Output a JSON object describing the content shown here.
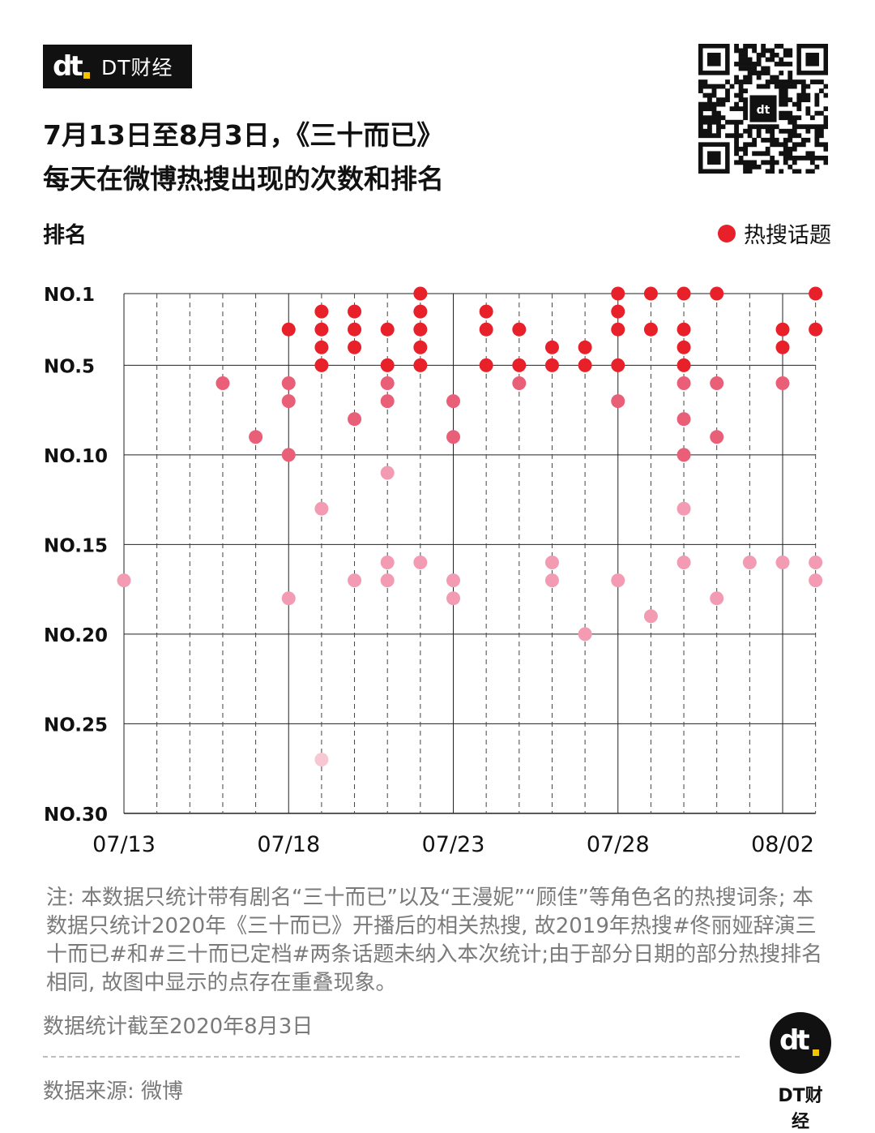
{
  "brand": {
    "name": "DT财经",
    "mark": "dt"
  },
  "title": {
    "line1": "7月13日至8月3日，《三十而已》",
    "line2": "每天在微博热搜出现的次数和排名"
  },
  "qr_icon": "qr-code",
  "colors": {
    "top5": "#e8202a",
    "rank6_10": "#ea5f78",
    "rank11_20": "#f39bb2",
    "rank21_30": "#f8c7d4",
    "brand_yellow": "#f5c400"
  },
  "chart_data": {
    "type": "scatter",
    "title": "7月13日至8月3日，《三十而已》每天在微博热搜出现的次数和排名",
    "ylabel": "排名",
    "y_inverted": true,
    "ylim": [
      1,
      30
    ],
    "y_ticks": [
      {
        "value": 1,
        "label": "NO.1"
      },
      {
        "value": 5,
        "label": "NO.5"
      },
      {
        "value": 10,
        "label": "NO.10"
      },
      {
        "value": 15,
        "label": "NO.15"
      },
      {
        "value": 20,
        "label": "NO.20"
      },
      {
        "value": 25,
        "label": "NO.25"
      },
      {
        "value": 30,
        "label": "NO.30"
      }
    ],
    "x_dates": [
      "07/13",
      "07/14",
      "07/15",
      "07/16",
      "07/17",
      "07/18",
      "07/19",
      "07/20",
      "07/21",
      "07/22",
      "07/23",
      "07/24",
      "07/25",
      "07/26",
      "07/27",
      "07/28",
      "07/29",
      "07/30",
      "07/31",
      "08/01",
      "08/02",
      "08/03"
    ],
    "x_tick_labels": [
      "07/13",
      "07/18",
      "07/23",
      "07/28",
      "08/02"
    ],
    "legend": "热搜话题",
    "grid": true,
    "points": [
      {
        "date": "07/13",
        "rank": 17
      },
      {
        "date": "07/16",
        "rank": 6
      },
      {
        "date": "07/17",
        "rank": 9
      },
      {
        "date": "07/18",
        "rank": 3
      },
      {
        "date": "07/18",
        "rank": 6
      },
      {
        "date": "07/18",
        "rank": 7
      },
      {
        "date": "07/18",
        "rank": 10
      },
      {
        "date": "07/18",
        "rank": 18
      },
      {
        "date": "07/19",
        "rank": 2
      },
      {
        "date": "07/19",
        "rank": 3
      },
      {
        "date": "07/19",
        "rank": 4
      },
      {
        "date": "07/19",
        "rank": 5
      },
      {
        "date": "07/19",
        "rank": 13
      },
      {
        "date": "07/19",
        "rank": 27
      },
      {
        "date": "07/20",
        "rank": 2
      },
      {
        "date": "07/20",
        "rank": 3
      },
      {
        "date": "07/20",
        "rank": 4
      },
      {
        "date": "07/20",
        "rank": 8
      },
      {
        "date": "07/20",
        "rank": 17
      },
      {
        "date": "07/21",
        "rank": 3
      },
      {
        "date": "07/21",
        "rank": 5
      },
      {
        "date": "07/21",
        "rank": 6
      },
      {
        "date": "07/21",
        "rank": 7
      },
      {
        "date": "07/21",
        "rank": 11
      },
      {
        "date": "07/21",
        "rank": 16
      },
      {
        "date": "07/21",
        "rank": 17
      },
      {
        "date": "07/22",
        "rank": 1
      },
      {
        "date": "07/22",
        "rank": 2
      },
      {
        "date": "07/22",
        "rank": 3
      },
      {
        "date": "07/22",
        "rank": 4
      },
      {
        "date": "07/22",
        "rank": 5
      },
      {
        "date": "07/22",
        "rank": 16
      },
      {
        "date": "07/23",
        "rank": 7
      },
      {
        "date": "07/23",
        "rank": 9
      },
      {
        "date": "07/23",
        "rank": 17
      },
      {
        "date": "07/23",
        "rank": 18
      },
      {
        "date": "07/24",
        "rank": 2
      },
      {
        "date": "07/24",
        "rank": 3
      },
      {
        "date": "07/24",
        "rank": 5
      },
      {
        "date": "07/25",
        "rank": 3
      },
      {
        "date": "07/25",
        "rank": 5
      },
      {
        "date": "07/25",
        "rank": 6
      },
      {
        "date": "07/26",
        "rank": 4
      },
      {
        "date": "07/26",
        "rank": 5
      },
      {
        "date": "07/26",
        "rank": 16
      },
      {
        "date": "07/26",
        "rank": 17
      },
      {
        "date": "07/27",
        "rank": 4
      },
      {
        "date": "07/27",
        "rank": 5
      },
      {
        "date": "07/27",
        "rank": 20
      },
      {
        "date": "07/28",
        "rank": 1
      },
      {
        "date": "07/28",
        "rank": 2
      },
      {
        "date": "07/28",
        "rank": 3
      },
      {
        "date": "07/28",
        "rank": 5
      },
      {
        "date": "07/28",
        "rank": 7
      },
      {
        "date": "07/28",
        "rank": 17
      },
      {
        "date": "07/29",
        "rank": 1
      },
      {
        "date": "07/29",
        "rank": 3
      },
      {
        "date": "07/29",
        "rank": 19
      },
      {
        "date": "07/30",
        "rank": 1
      },
      {
        "date": "07/30",
        "rank": 3
      },
      {
        "date": "07/30",
        "rank": 4
      },
      {
        "date": "07/30",
        "rank": 5
      },
      {
        "date": "07/30",
        "rank": 6
      },
      {
        "date": "07/30",
        "rank": 8
      },
      {
        "date": "07/30",
        "rank": 10
      },
      {
        "date": "07/30",
        "rank": 13
      },
      {
        "date": "07/30",
        "rank": 16
      },
      {
        "date": "07/31",
        "rank": 1
      },
      {
        "date": "07/31",
        "rank": 6
      },
      {
        "date": "07/31",
        "rank": 9
      },
      {
        "date": "07/31",
        "rank": 18
      },
      {
        "date": "08/01",
        "rank": 16
      },
      {
        "date": "08/02",
        "rank": 3
      },
      {
        "date": "08/02",
        "rank": 4
      },
      {
        "date": "08/02",
        "rank": 6
      },
      {
        "date": "08/02",
        "rank": 16
      },
      {
        "date": "08/03",
        "rank": 1
      },
      {
        "date": "08/03",
        "rank": 3
      },
      {
        "date": "08/03",
        "rank": 16
      },
      {
        "date": "08/03",
        "rank": 17
      }
    ]
  },
  "notes": {
    "text": "注: 本数据只统计带有剧名“三十而已”以及“王漫妮”“顾佳”等角色名的热搜词条; 本数据只统计2020年《三十而已》开播后的相关热搜, 故2019年热搜#佟丽娅辞演三十而已#和#三十而已定档#两条话题未纳入本次统计;由于部分日期的部分热搜排名相同, 故图中显示的点存在重叠现象。",
    "cutoff": "数据统计截至2020年8月3日",
    "source": "数据来源: 微博"
  },
  "footer_logo": {
    "mark": "dt",
    "name": "DT财经"
  }
}
